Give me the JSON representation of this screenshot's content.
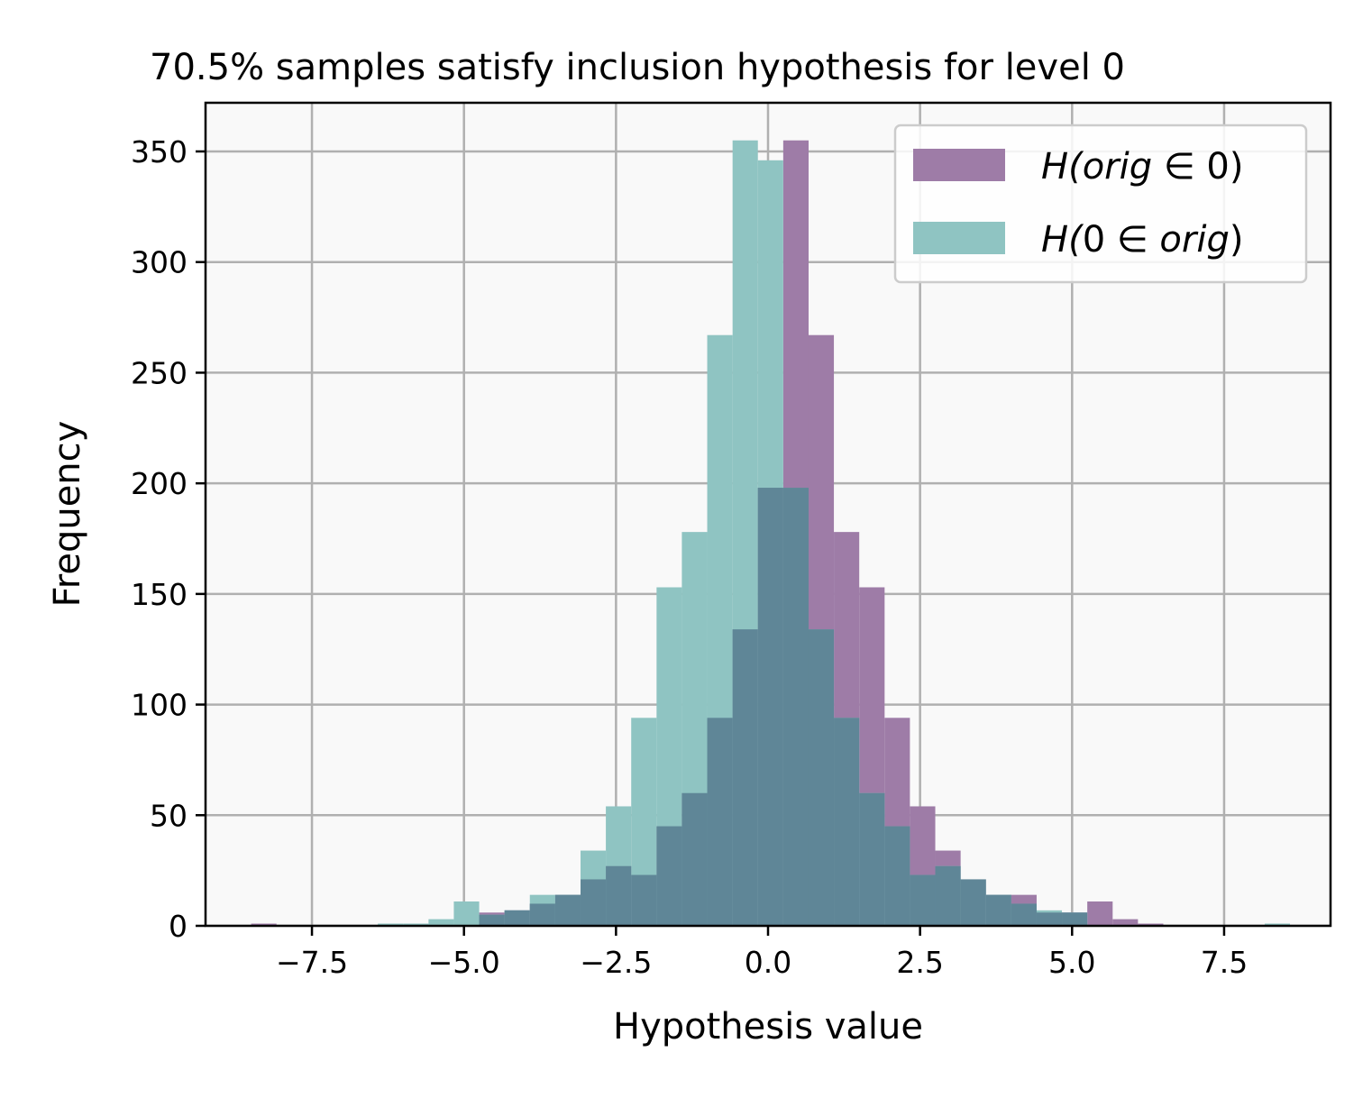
{
  "chart_data": {
    "type": "bar",
    "title": "70.5% samples satisfy inclusion hypothesis for level 0",
    "xlabel": "Hypothesis value",
    "ylabel": "Frequency",
    "xlim": [
      -9.25,
      9.25
    ],
    "ylim": [
      0,
      372
    ],
    "xticks": [
      -7.5,
      -5.0,
      -2.5,
      0.0,
      2.5,
      5.0,
      7.5
    ],
    "xtick_labels": [
      "−7.5",
      "−5.0",
      "−2.5",
      "0.0",
      "2.5",
      "5.0",
      "7.5"
    ],
    "yticks": [
      0,
      50,
      100,
      150,
      200,
      250,
      300,
      350
    ],
    "ytick_labels": [
      "0",
      "50",
      "100",
      "150",
      "200",
      "250",
      "300",
      "350"
    ],
    "grid": true,
    "legend_position": "top-right",
    "bin_edges": [
      -8.5,
      -8.083,
      -7.667,
      -7.25,
      -6.833,
      -6.417,
      -6.0,
      -5.583,
      -5.167,
      -4.75,
      -4.333,
      -3.917,
      -3.5,
      -3.083,
      -2.667,
      -2.25,
      -1.833,
      -1.417,
      -1.0,
      -0.583,
      -0.167,
      0.25,
      0.667,
      1.083,
      1.5,
      1.917,
      2.333,
      2.75,
      3.167,
      3.583,
      4.0,
      4.417,
      4.833,
      5.25,
      5.667,
      6.083,
      6.5,
      6.917,
      7.333,
      7.75,
      8.167,
      8.583
    ],
    "series": [
      {
        "name": "H(orig ∈ 0)",
        "color": "#9e7ca7",
        "values": [
          1,
          0,
          0,
          0,
          0,
          0,
          0,
          0,
          0,
          6,
          7,
          10,
          14,
          21,
          27,
          23,
          45,
          60,
          94,
          134,
          198,
          355,
          267,
          178,
          153,
          94,
          54,
          34,
          21,
          14,
          14,
          6,
          6,
          11,
          3,
          1,
          0,
          0,
          0,
          0,
          0
        ]
      },
      {
        "name": "H(0 ∈ orig)",
        "color": "#8fc4c2",
        "values": [
          0,
          0,
          0,
          0,
          0,
          1,
          1,
          3,
          11,
          5,
          7,
          14,
          14,
          34,
          54,
          94,
          153,
          178,
          267,
          355,
          346,
          198,
          134,
          94,
          60,
          45,
          23,
          27,
          21,
          14,
          10,
          7,
          6,
          0,
          0,
          0,
          0,
          0,
          0,
          0,
          1
        ]
      }
    ],
    "overlap_color": "#5f8697",
    "legend": [
      {
        "prefix": "H(",
        "a": "orig",
        "op": " ∈ ",
        "b": "0",
        "suffix": ")"
      },
      {
        "prefix": "H(",
        "a": "0",
        "op": " ∈ ",
        "b": "orig",
        "suffix": ")"
      }
    ]
  }
}
